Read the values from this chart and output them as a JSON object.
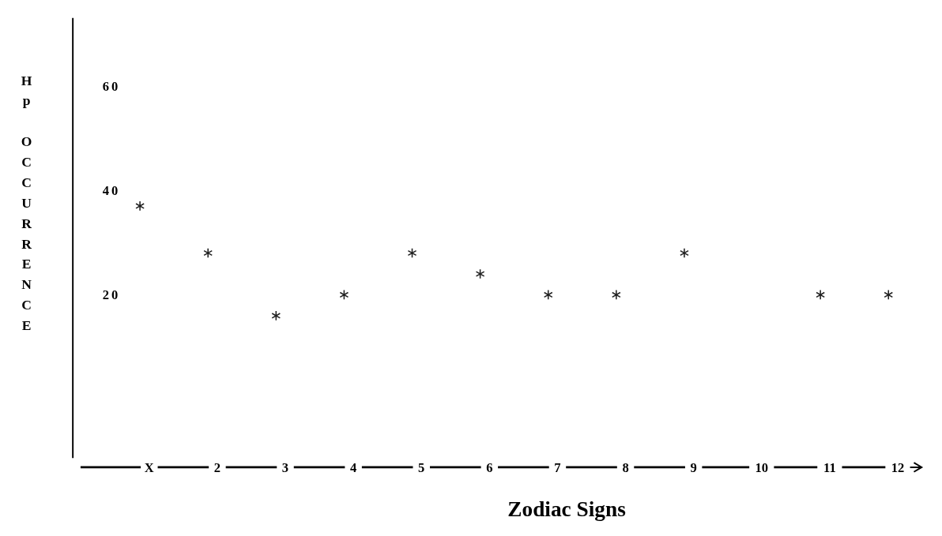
{
  "chart_data": {
    "type": "scatter",
    "xlabel": "Zodiac Signs",
    "ylabel": "Hp OCCURRENCE",
    "categories": [
      "X",
      "2",
      "3",
      "4",
      "5",
      "6",
      "7",
      "8",
      "9",
      "10",
      "11",
      "12"
    ],
    "values": [
      37,
      28,
      16,
      20,
      28,
      24,
      20,
      20,
      28,
      null,
      20,
      20
    ],
    "color": "#222222",
    "marker": "cross",
    "grid": false,
    "ylim": [
      -13,
      73
    ],
    "yticks": [
      20,
      40,
      60
    ]
  }
}
